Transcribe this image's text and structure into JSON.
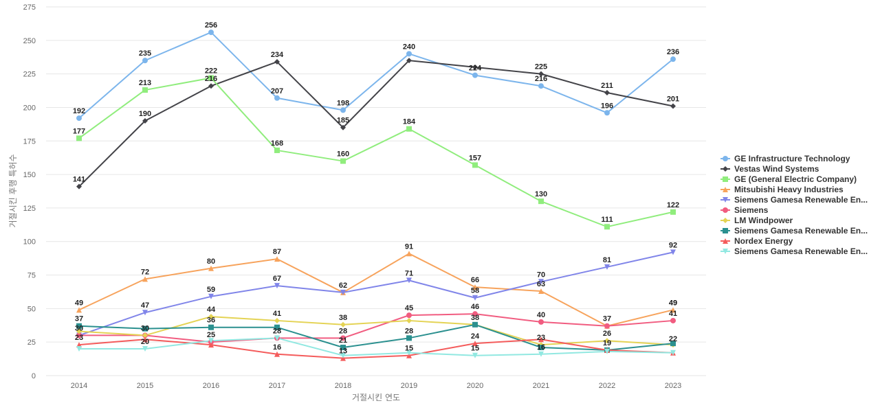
{
  "chart_data": {
    "type": "line",
    "title": "",
    "xlabel": "거절시킨 연도",
    "ylabel": "거절시킨 후행 특허수",
    "x": [
      "2014",
      "2015",
      "2016",
      "2017",
      "2018",
      "2019",
      "2020",
      "2021",
      "2022",
      "2023"
    ],
    "ylim": [
      0,
      275
    ],
    "yticks": [
      0,
      25,
      50,
      75,
      100,
      125,
      150,
      175,
      200,
      225,
      250,
      275
    ],
    "grid": true,
    "legend_position": "right",
    "series": [
      {
        "name": "GE Infrastructure Technology",
        "color": "#7cb5ec",
        "marker": "circle",
        "values": [
          192,
          235,
          256,
          207,
          198,
          240,
          224,
          216,
          196,
          236
        ]
      },
      {
        "name": "Vestas Wind Systems",
        "color": "#434348",
        "marker": "diamond",
        "values": [
          141,
          190,
          216,
          234,
          185,
          235,
          230,
          225,
          211,
          201
        ]
      },
      {
        "name": "GE (General Electric Company)",
        "color": "#90ed7d",
        "marker": "square",
        "values": [
          177,
          213,
          222,
          168,
          160,
          184,
          157,
          130,
          111,
          122
        ]
      },
      {
        "name": "Mitsubishi Heavy Industries",
        "color": "#f7a35c",
        "marker": "triangle",
        "values": [
          49,
          72,
          80,
          87,
          62,
          91,
          66,
          63,
          37,
          49
        ]
      },
      {
        "name": "Siemens Gamesa Renewable En...",
        "color": "#8085e9",
        "marker": "triangle-down",
        "values": [
          30,
          47,
          59,
          67,
          62,
          71,
          58,
          70,
          81,
          92
        ]
      },
      {
        "name": "Siemens",
        "color": "#f15c80",
        "marker": "circle",
        "values": [
          30,
          30,
          25,
          28,
          28,
          45,
          46,
          40,
          37,
          41
        ]
      },
      {
        "name": "LM Windpower",
        "color": "#e4d354",
        "marker": "diamond",
        "values": [
          33,
          30,
          44,
          41,
          38,
          41,
          38,
          23,
          26,
          23
        ]
      },
      {
        "name": "Siemens Gamesa Renewable En...",
        "color": "#2b908f",
        "marker": "square",
        "values": [
          37,
          35,
          36,
          36,
          21,
          28,
          38,
          21,
          19,
          24
        ]
      },
      {
        "name": "Nordex Energy",
        "color": "#f45b5b",
        "marker": "triangle",
        "values": [
          23,
          27,
          23,
          16,
          13,
          15,
          24,
          27,
          19,
          17
        ]
      },
      {
        "name": "Siemens Gamesa Renewable En...",
        "color": "#91e8e1",
        "marker": "triangle-down",
        "values": [
          20,
          20,
          26,
          28,
          15,
          17,
          15,
          16,
          18,
          17
        ]
      }
    ],
    "data_labels": [
      {
        "text": "256",
        "x": "2016",
        "y": 256
      },
      {
        "text": "235",
        "x": "2015",
        "y": 235
      },
      {
        "text": "192",
        "x": "2014",
        "y": 192
      },
      {
        "text": "207",
        "x": "2017",
        "y": 207
      },
      {
        "text": "198",
        "x": "2018",
        "y": 198
      },
      {
        "text": "240",
        "x": "2019",
        "y": 240
      },
      {
        "text": "224",
        "x": "2020",
        "y": 224
      },
      {
        "text": "216",
        "x": "2021",
        "y": 216
      },
      {
        "text": "196",
        "x": "2022",
        "y": 196
      },
      {
        "text": "236",
        "x": "2023",
        "y": 236
      },
      {
        "text": "141",
        "x": "2014",
        "y": 141
      },
      {
        "text": "190",
        "x": "2015",
        "y": 190
      },
      {
        "text": "216",
        "x": "2016",
        "y": 216
      },
      {
        "text": "234",
        "x": "2017",
        "y": 234
      },
      {
        "text": "185",
        "x": "2018",
        "y": 185
      },
      {
        "text": "225",
        "x": "2021",
        "y": 225
      },
      {
        "text": "211",
        "x": "2022",
        "y": 211
      },
      {
        "text": "201",
        "x": "2023",
        "y": 201
      },
      {
        "text": "177",
        "x": "2014",
        "y": 177
      },
      {
        "text": "213",
        "x": "2015",
        "y": 213
      },
      {
        "text": "222",
        "x": "2016",
        "y": 222
      },
      {
        "text": "168",
        "x": "2017",
        "y": 168
      },
      {
        "text": "160",
        "x": "2018",
        "y": 160
      },
      {
        "text": "184",
        "x": "2019",
        "y": 184
      },
      {
        "text": "157",
        "x": "2020",
        "y": 157
      },
      {
        "text": "130",
        "x": "2021",
        "y": 130
      },
      {
        "text": "111",
        "x": "2022",
        "y": 111
      },
      {
        "text": "122",
        "x": "2023",
        "y": 122
      },
      {
        "text": "49",
        "x": "2014",
        "y": 49
      },
      {
        "text": "72",
        "x": "2015",
        "y": 72
      },
      {
        "text": "80",
        "x": "2016",
        "y": 80
      },
      {
        "text": "87",
        "x": "2017",
        "y": 87
      },
      {
        "text": "62",
        "x": "2018",
        "y": 62
      },
      {
        "text": "91",
        "x": "2019",
        "y": 91
      },
      {
        "text": "66",
        "x": "2020",
        "y": 66
      },
      {
        "text": "63",
        "x": "2021",
        "y": 63
      },
      {
        "text": "37",
        "x": "2022",
        "y": 37
      },
      {
        "text": "49",
        "x": "2023",
        "y": 49
      },
      {
        "text": "47",
        "x": "2015",
        "y": 47
      },
      {
        "text": "59",
        "x": "2016",
        "y": 59
      },
      {
        "text": "67",
        "x": "2017",
        "y": 67
      },
      {
        "text": "71",
        "x": "2019",
        "y": 71
      },
      {
        "text": "58",
        "x": "2020",
        "y": 58
      },
      {
        "text": "70",
        "x": "2021",
        "y": 70
      },
      {
        "text": "81",
        "x": "2022",
        "y": 81
      },
      {
        "text": "92",
        "x": "2023",
        "y": 92
      },
      {
        "text": "37",
        "x": "2014",
        "y": 37
      },
      {
        "text": "30",
        "x": "2014",
        "y": 30
      },
      {
        "text": "30",
        "x": "2015",
        "y": 30
      },
      {
        "text": "44",
        "x": "2016",
        "y": 44
      },
      {
        "text": "36",
        "x": "2016",
        "y": 36
      },
      {
        "text": "41",
        "x": "2017",
        "y": 41
      },
      {
        "text": "38",
        "x": "2018",
        "y": 38
      },
      {
        "text": "45",
        "x": "2019",
        "y": 45
      },
      {
        "text": "46",
        "x": "2020",
        "y": 46
      },
      {
        "text": "38",
        "x": "2020",
        "y": 38
      },
      {
        "text": "40",
        "x": "2021",
        "y": 40
      },
      {
        "text": "49",
        "x": "2023",
        "y": 49
      },
      {
        "text": "41",
        "x": "2023",
        "y": 41
      },
      {
        "text": "23",
        "x": "2014",
        "y": 23
      },
      {
        "text": "20",
        "x": "2015",
        "y": 20
      },
      {
        "text": "25",
        "x": "2016",
        "y": 25
      },
      {
        "text": "28",
        "x": "2017",
        "y": 28
      },
      {
        "text": "16",
        "x": "2017",
        "y": 16
      },
      {
        "text": "28",
        "x": "2018",
        "y": 28
      },
      {
        "text": "21",
        "x": "2018",
        "y": 21
      },
      {
        "text": "13",
        "x": "2018",
        "y": 13
      },
      {
        "text": "28",
        "x": "2019",
        "y": 28
      },
      {
        "text": "15",
        "x": "2019",
        "y": 15
      },
      {
        "text": "24",
        "x": "2020",
        "y": 24
      },
      {
        "text": "15",
        "x": "2020",
        "y": 15
      },
      {
        "text": "23",
        "x": "2021",
        "y": 23
      },
      {
        "text": "16",
        "x": "2021",
        "y": 16
      },
      {
        "text": "26",
        "x": "2022",
        "y": 26
      },
      {
        "text": "19",
        "x": "2022",
        "y": 19
      },
      {
        "text": "22",
        "x": "2023",
        "y": 22
      }
    ]
  }
}
